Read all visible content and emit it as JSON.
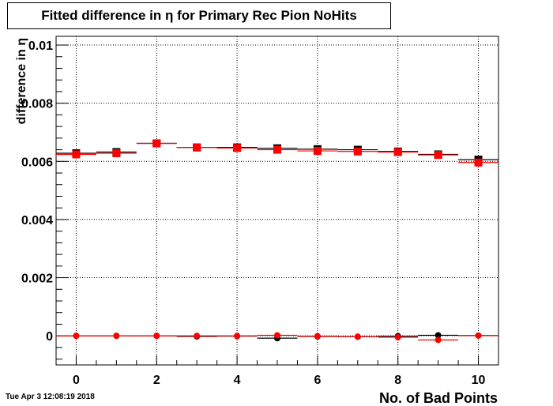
{
  "timestamp": "Tue Apr  3 12:08:19 2018",
  "chart_data": {
    "type": "scatter",
    "title": "Fitted difference in  η for Primary Rec Pion NoHits",
    "xlabel": "No. of Bad Points",
    "ylabel": "difference in  η",
    "xlim": [
      -0.5,
      10.5
    ],
    "ylim": [
      -0.001,
      0.0103
    ],
    "grid": true,
    "x_ticks": [
      "0",
      "2",
      "4",
      "6",
      "8",
      "10"
    ],
    "y_ticks": [
      "0",
      "0.002",
      "0.004",
      "0.006",
      "0.008",
      "0.01"
    ],
    "x": [
      0,
      1,
      2,
      3,
      4,
      5,
      6,
      7,
      8,
      9,
      10
    ],
    "series": [
      {
        "marker": "square",
        "color": "#000000",
        "values": [
          0.00628,
          0.00632,
          0.00662,
          0.00648,
          0.00648,
          0.00645,
          0.00642,
          0.0064,
          0.00634,
          0.00624,
          0.00606
        ]
      },
      {
        "marker": "square",
        "color": "#ff0000",
        "values": [
          0.00624,
          0.00628,
          0.00662,
          0.00648,
          0.00646,
          0.0064,
          0.00636,
          0.00634,
          0.00632,
          0.00622,
          0.00596
        ]
      },
      {
        "marker": "circle",
        "color": "#000000",
        "values": [
          0.0,
          0.0,
          0.0,
          -2e-05,
          -1e-05,
          -8e-05,
          -2e-05,
          -3e-05,
          -1e-05,
          2e-05,
          1e-05
        ]
      },
      {
        "marker": "circle",
        "color": "#ff0000",
        "values": [
          0.0,
          0.0,
          0.0,
          0.0,
          0.0,
          2e-05,
          -1e-05,
          -3e-05,
          -5e-05,
          -0.00014,
          1e-05
        ]
      }
    ]
  }
}
